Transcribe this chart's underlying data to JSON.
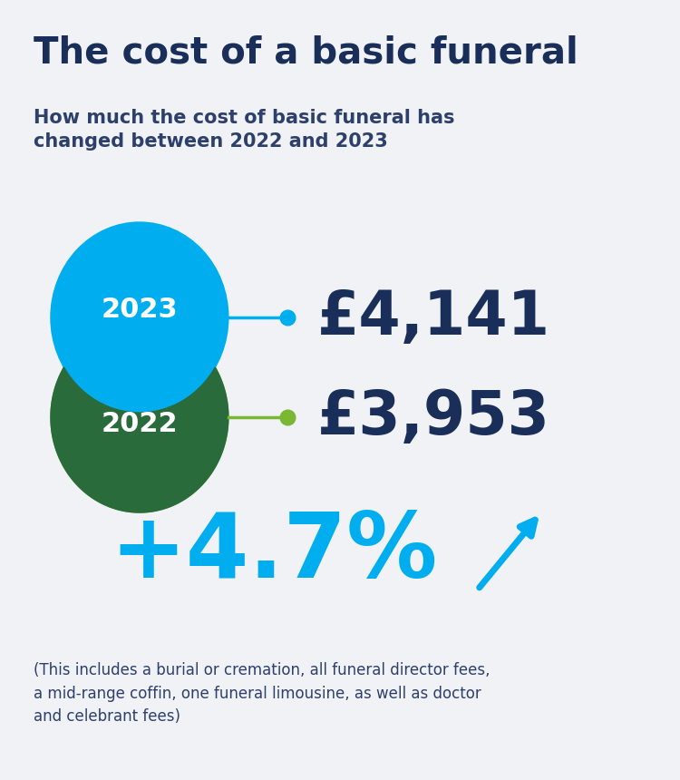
{
  "title": "The cost of a basic funeral",
  "subtitle": "How much the cost of basic funeral has\nchanged between 2022 and 2023",
  "year_2023": "2023",
  "year_2022": "2022",
  "value_2023": "£4,141",
  "value_2022": "£3,953",
  "change": "+4.7%",
  "arrow_char": "↗",
  "footnote": "(This includes a burial or cremation, all funeral director fees,\na mid-range coffin, one funeral limousine, as well as doctor\nand celebrant fees)",
  "bg_color": "#f0f2f5",
  "title_color": "#1a2e5a",
  "subtitle_color": "#2d3f6b",
  "value_color": "#1a2e5a",
  "change_color": "#00aeef",
  "footnote_color": "#2d3f6b",
  "circle_2023_color": "#00aeef",
  "circle_2022_color": "#7ab733",
  "circle_overlap_color": "#2a6b3c",
  "line_2023_color": "#00aeef",
  "line_2022_color": "#7ab733",
  "dot_2023_color": "#00aeef",
  "dot_2022_color": "#7ab733",
  "fig_width": 7.5,
  "fig_height": 8.6
}
